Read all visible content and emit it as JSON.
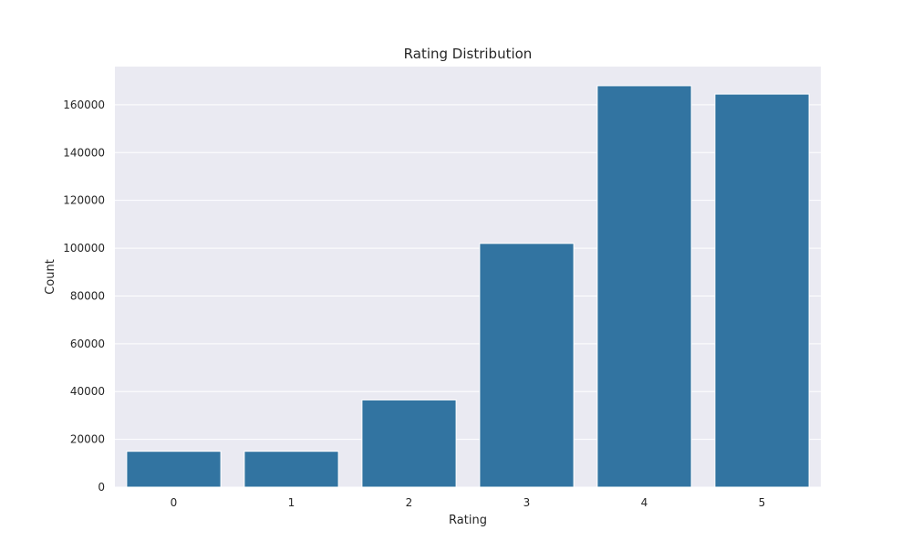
{
  "chart_data": {
    "type": "bar",
    "title": "Rating Distribution",
    "xlabel": "Rating",
    "ylabel": "Count",
    "categories": [
      "0",
      "1",
      "2",
      "3",
      "4",
      "5"
    ],
    "values": [
      15000,
      15000,
      36500,
      102000,
      168000,
      164500
    ],
    "ylim": [
      0,
      176000
    ],
    "yticks": [
      0,
      20000,
      40000,
      60000,
      80000,
      100000,
      120000,
      140000,
      160000
    ],
    "ytick_labels": [
      "0",
      "20000",
      "40000",
      "60000",
      "80000",
      "100000",
      "120000",
      "140000",
      "160000"
    ],
    "grid": true,
    "colors": {
      "bar": "#3274a1",
      "plot_background": "#eaeaf2",
      "grid": "#ffffff"
    }
  }
}
